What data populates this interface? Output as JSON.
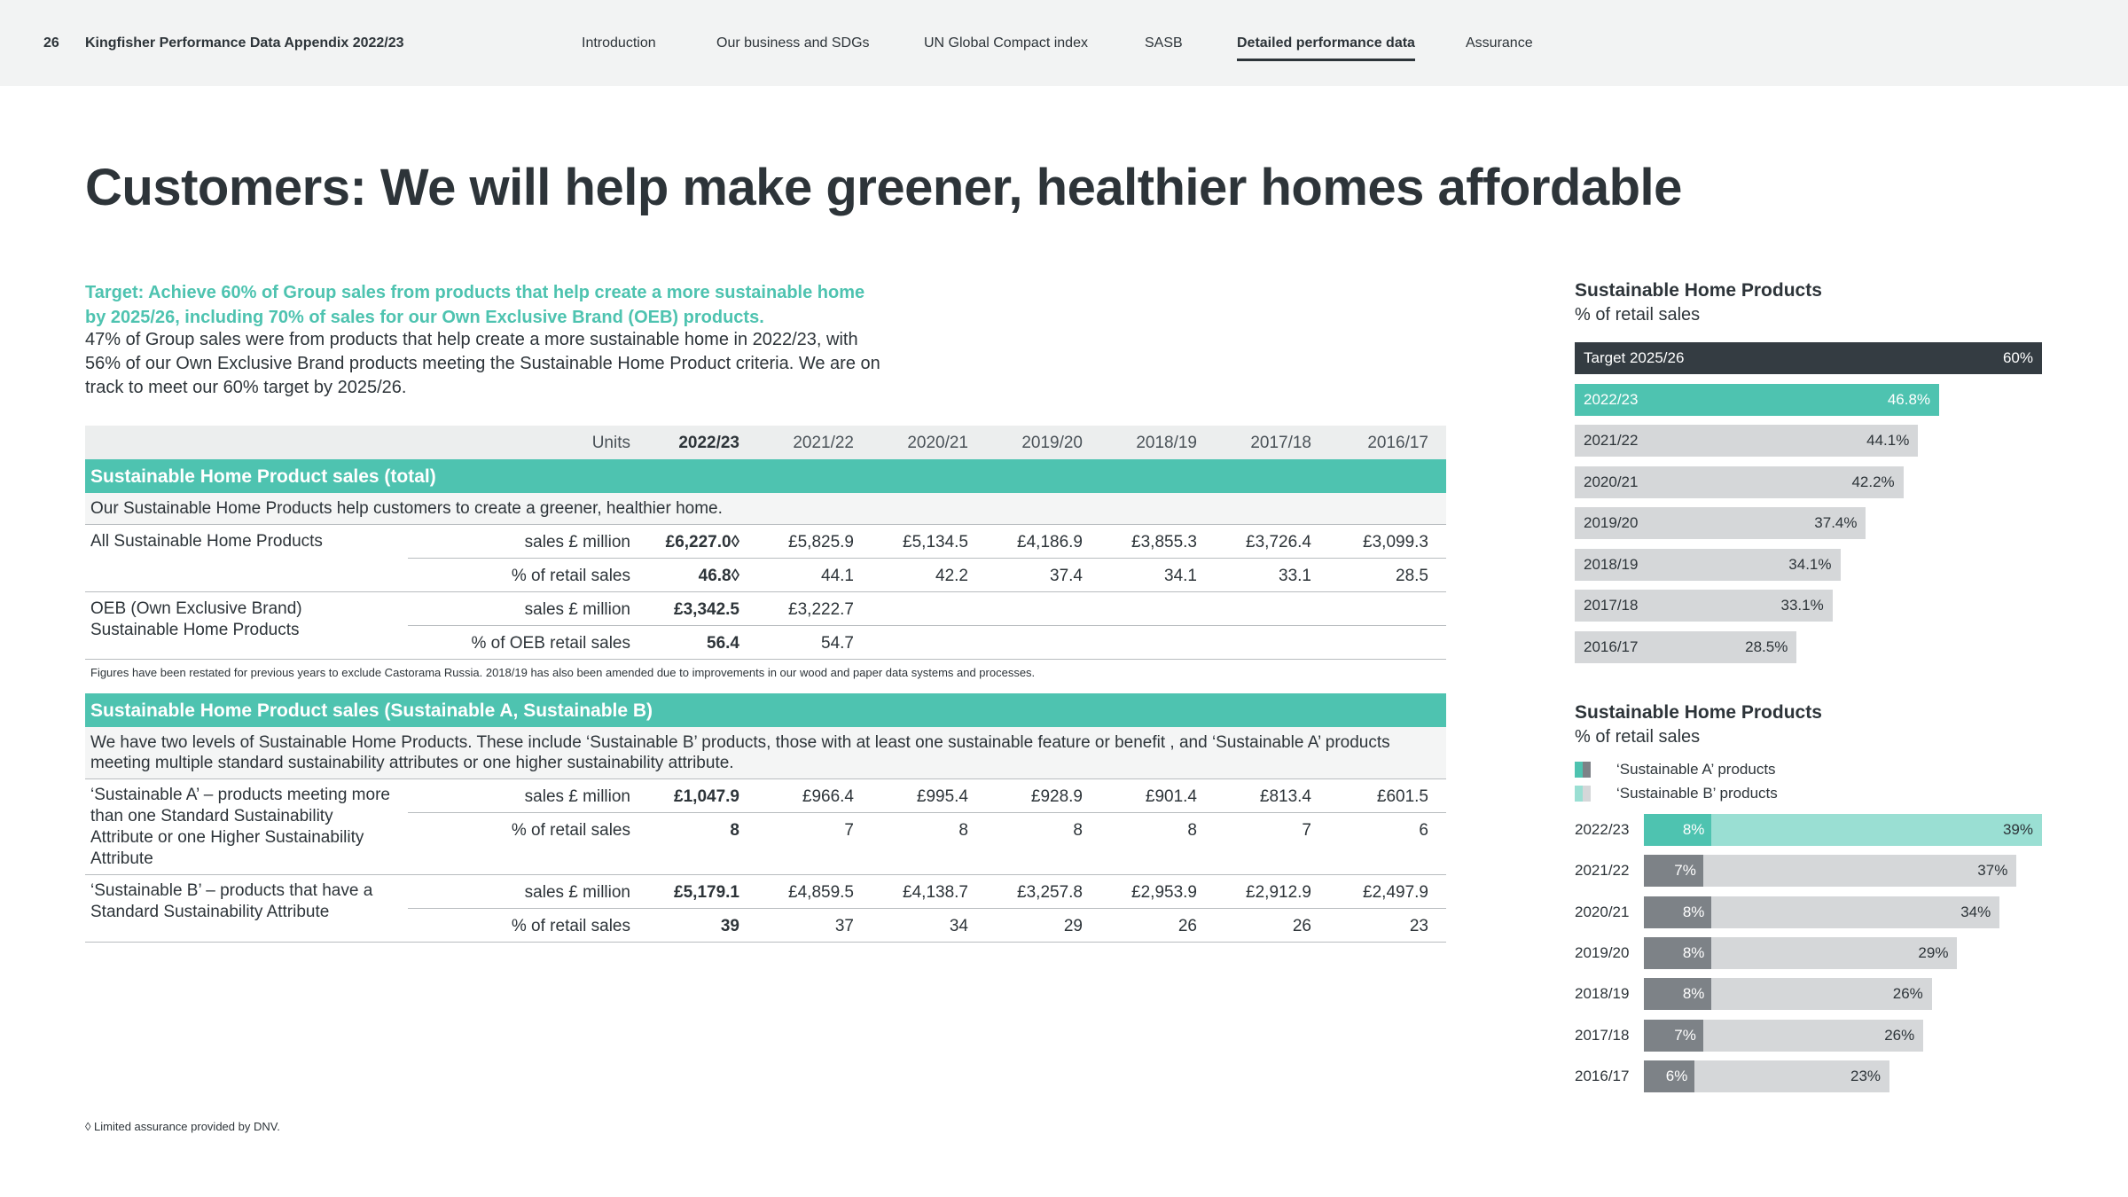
{
  "header": {
    "page_number": "26",
    "doc_title": "Kingfisher Performance Data Appendix 2022/23",
    "nav": [
      "Introduction",
      "Our business and SDGs",
      "UN Global Compact index",
      "SASB",
      "Detailed performance data",
      "Assurance"
    ],
    "active_nav": "Detailed performance data"
  },
  "headline": "Customers: We will help make greener, healthier homes affordable",
  "intro": {
    "target": "Target: Achieve 60% of Group sales from products that help create a more sustainable home by 2025/26, including 70% of sales for our Own Exclusive Brand (OEB) products.",
    "body": "47% of Group sales were from products that help create a more sustainable home in 2022/23, with 56% of our Own Exclusive Brand products meeting the Sustainable Home Product criteria. We are on track to meet our 60% target by 2025/26."
  },
  "table": {
    "units_header": "Units",
    "years": [
      "2022/23",
      "2021/22",
      "2020/21",
      "2019/20",
      "2018/19",
      "2017/18",
      "2016/17"
    ],
    "section1": {
      "title": "Sustainable Home Product sales (total)",
      "note": "Our Sustainable Home Products help customers to create a greener, healthier home.",
      "groups": [
        {
          "label": "All Sustainable Home Products",
          "rows": [
            {
              "unit": "sales £ million",
              "values": [
                "£6,227.0◊",
                "£5,825.9",
                "£5,134.5",
                "£4,186.9",
                "£3,855.3",
                "£3,726.4",
                "£3,099.3"
              ]
            },
            {
              "unit": "% of retail sales",
              "values": [
                "46.8◊",
                "44.1",
                "42.2",
                "37.4",
                "34.1",
                "33.1",
                "28.5"
              ]
            }
          ]
        },
        {
          "label": "OEB (Own Exclusive Brand) Sustainable Home Products",
          "rows": [
            {
              "unit": "sales £ million",
              "values": [
                "£3,342.5",
                "£3,222.7",
                "",
                "",
                "",
                "",
                ""
              ]
            },
            {
              "unit": "% of OEB retail sales",
              "values": [
                "56.4",
                "54.7",
                "",
                "",
                "",
                "",
                ""
              ]
            }
          ]
        }
      ],
      "footnote": "Figures have been restated for previous years to exclude Castorama Russia. 2018/19 has also been amended due to improvements in our wood and paper data systems and processes."
    },
    "section2": {
      "title": "Sustainable Home Product sales (Sustainable A, Sustainable B)",
      "note": "We have two levels of Sustainable Home Products. These include ‘Sustainable B’ products, those with at least one sustainable feature or benefit , and ‘Sustainable A’ products meeting multiple standard sustainability attributes or one higher sustainability attribute.",
      "groups": [
        {
          "label": "‘Sustainable A’ – products meeting more than one Standard Sustainability Attribute or one Higher Sustainability Attribute",
          "rows": [
            {
              "unit": "sales £ million",
              "values": [
                "£1,047.9",
                "£966.4",
                "£995.4",
                "£928.9",
                "£901.4",
                "£813.4",
                "£601.5"
              ]
            },
            {
              "unit": "% of retail sales",
              "values": [
                "8",
                "7",
                "8",
                "8",
                "8",
                "7",
                "6"
              ]
            }
          ]
        },
        {
          "label": "‘Sustainable  B’ – products that have a Standard Sustainability Attribute",
          "rows": [
            {
              "unit": "sales £ million",
              "values": [
                "£5,179.1",
                "£4,859.5",
                "£4,138.7",
                "£3,257.8",
                "£2,953.9",
                "£2,912.9",
                "£2,497.9"
              ]
            },
            {
              "unit": "% of retail sales",
              "values": [
                "39",
                "37",
                "34",
                "29",
                "26",
                "26",
                "23"
              ]
            }
          ]
        }
      ]
    }
  },
  "limited_assurance_note": "◊ Limited assurance provided by DNV.",
  "chart_data": [
    {
      "type": "bar",
      "title": "Sustainable Home Products",
      "subtitle": "% of retail sales",
      "categories": [
        "Target 2025/26",
        "2022/23",
        "2021/22",
        "2020/21",
        "2019/20",
        "2018/19",
        "2017/18",
        "2016/17"
      ],
      "values": [
        60,
        46.8,
        44.1,
        42.2,
        37.4,
        34.1,
        33.1,
        28.5
      ],
      "value_labels": [
        "60%",
        "46.8%",
        "44.1%",
        "42.2%",
        "37.4%",
        "34.1%",
        "33.1%",
        "28.5%"
      ],
      "colors": {
        "target": "#343c42",
        "current": "#4ec3b0",
        "other": "#d5d7d9"
      },
      "orientation": "horizontal"
    },
    {
      "type": "bar",
      "title": "Sustainable Home Products",
      "subtitle": "% of retail sales",
      "legend": [
        "‘Sustainable A’ products",
        "‘Sustainable B’ products"
      ],
      "categories": [
        "2022/23",
        "2021/22",
        "2020/21",
        "2019/20",
        "2018/19",
        "2017/18",
        "2016/17"
      ],
      "series": [
        {
          "name": "‘Sustainable A’ products",
          "values": [
            8,
            7,
            8,
            8,
            8,
            7,
            6
          ],
          "labels": [
            "8%",
            "7%",
            "8%",
            "8%",
            "8%",
            "7%",
            "6%"
          ]
        },
        {
          "name": "‘Sustainable B’ products",
          "values": [
            39,
            37,
            34,
            29,
            26,
            26,
            23
          ],
          "labels": [
            "39%",
            "37%",
            "34%",
            "29%",
            "26%",
            "26%",
            "23%"
          ]
        }
      ],
      "colors": {
        "a_current": "#4ec3b0",
        "b_current": "#9adfd3",
        "a_other": "#7d8287",
        "b_other": "#d5d7d9"
      },
      "stacked": true,
      "orientation": "horizontal"
    }
  ]
}
